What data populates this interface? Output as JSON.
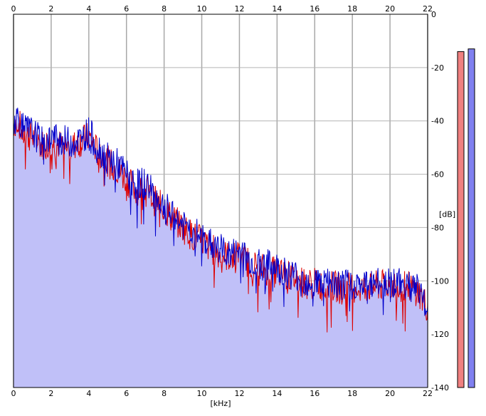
{
  "chart_data": {
    "type": "line",
    "title": "",
    "xlabel": "[kHz]",
    "ylabel": "[dB]",
    "xlim": [
      0,
      22
    ],
    "ylim": [
      -140,
      0
    ],
    "x_ticks": [
      0,
      2,
      4,
      6,
      8,
      10,
      12,
      14,
      16,
      18,
      20,
      22
    ],
    "y_ticks": [
      0,
      -20,
      -40,
      -60,
      -80,
      -100,
      -120,
      -140
    ],
    "y_tick_labels": [
      "0",
      "-20",
      "-40",
      "-60",
      "-80",
      "-100",
      "-120",
      "-140"
    ],
    "grid": true,
    "fill": {
      "color": "#c0c0f8",
      "note": "shaded area under spectrum"
    },
    "series": [
      {
        "color": "#0000cc",
        "x": [
          0,
          0.25,
          0.5,
          1,
          1.5,
          2,
          2.5,
          3,
          3.5,
          4,
          4.5,
          5,
          5.5,
          6,
          6.5,
          7,
          7.5,
          8,
          8.5,
          9,
          9.5,
          10,
          10.5,
          11,
          11.5,
          12,
          12.5,
          13,
          13.5,
          14,
          14.5,
          15,
          15.5,
          16,
          16.5,
          17,
          17.5,
          18,
          18.5,
          19,
          19.5,
          20,
          20.5,
          21,
          21.5,
          22
        ],
        "values": [
          -40,
          -38,
          -43,
          -44,
          -48,
          -46,
          -47,
          -48,
          -47,
          -44,
          -50,
          -54,
          -56,
          -60,
          -64,
          -63,
          -68,
          -72,
          -76,
          -79,
          -81,
          -84,
          -86,
          -88,
          -90,
          -89,
          -92,
          -94,
          -94,
          -95,
          -97,
          -98,
          -100,
          -100,
          -101,
          -101,
          -102,
          -101,
          -102,
          -101,
          -101,
          -100,
          -101,
          -101,
          -103,
          -108
        ]
      },
      {
        "color": "#dd0000",
        "x": [
          0,
          0.25,
          0.5,
          1,
          1.5,
          2,
          2.5,
          3,
          3.5,
          4,
          4.5,
          5,
          5.5,
          6,
          6.5,
          7,
          7.5,
          8,
          8.5,
          9,
          9.5,
          10,
          10.5,
          11,
          11.5,
          12,
          12.5,
          13,
          13.5,
          14,
          14.5,
          15,
          15.5,
          16,
          16.5,
          17,
          17.5,
          18,
          18.5,
          19,
          19.5,
          20,
          20.5,
          21,
          21.5,
          22
        ],
        "values": [
          -41,
          -40,
          -45,
          -46,
          -49,
          -48,
          -49,
          -50,
          -48,
          -46,
          -52,
          -55,
          -58,
          -62,
          -66,
          -65,
          -70,
          -73,
          -77,
          -80,
          -83,
          -85,
          -88,
          -90,
          -91,
          -91,
          -93,
          -95,
          -96,
          -97,
          -98,
          -99,
          -101,
          -101,
          -102,
          -102,
          -103,
          -102,
          -103,
          -102,
          -102,
          -101,
          -102,
          -102,
          -104,
          -110
        ]
      }
    ],
    "level_meters": [
      {
        "channel": "left",
        "color": "#f08080",
        "level_db": -14
      },
      {
        "channel": "right",
        "color": "#8080f0",
        "level_db": -13
      }
    ]
  }
}
